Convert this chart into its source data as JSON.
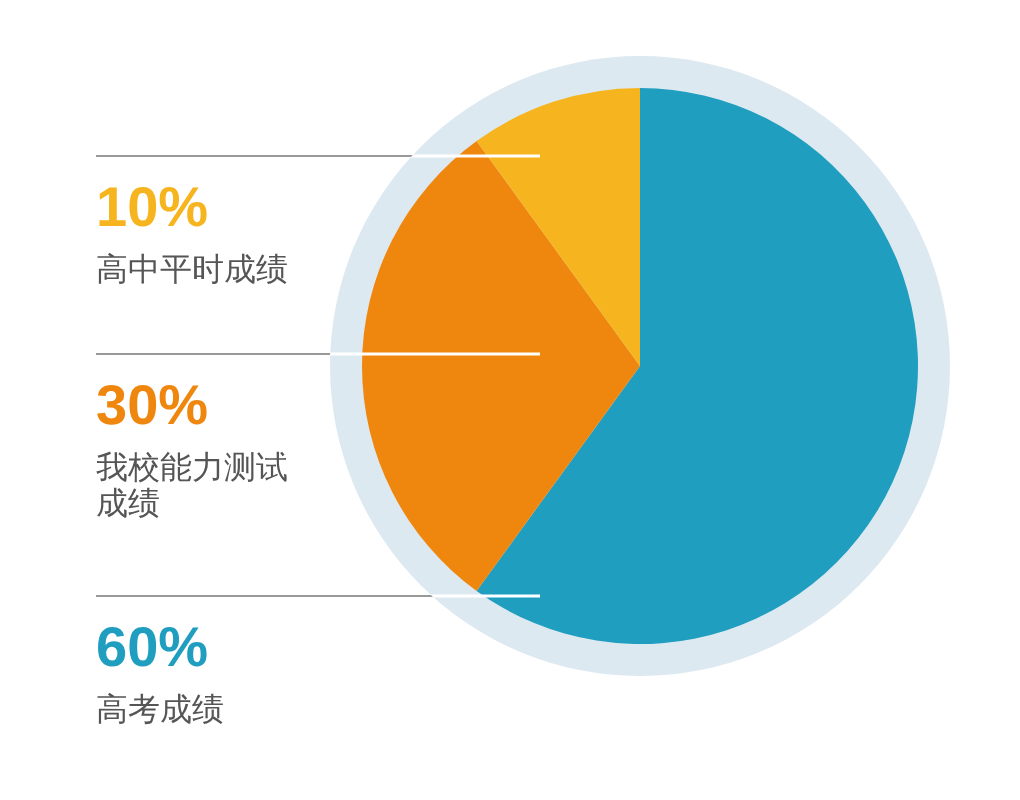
{
  "chart_data": {
    "type": "pie",
    "categories": [
      "高中平时成绩",
      "我校能力测试成绩",
      "高考成绩"
    ],
    "values": [
      10,
      30,
      60
    ],
    "colors": [
      "#f6b51e",
      "#ef870f",
      "#1f9ec0"
    ],
    "value_labels": [
      "10%",
      "30%",
      "60%"
    ]
  }
}
